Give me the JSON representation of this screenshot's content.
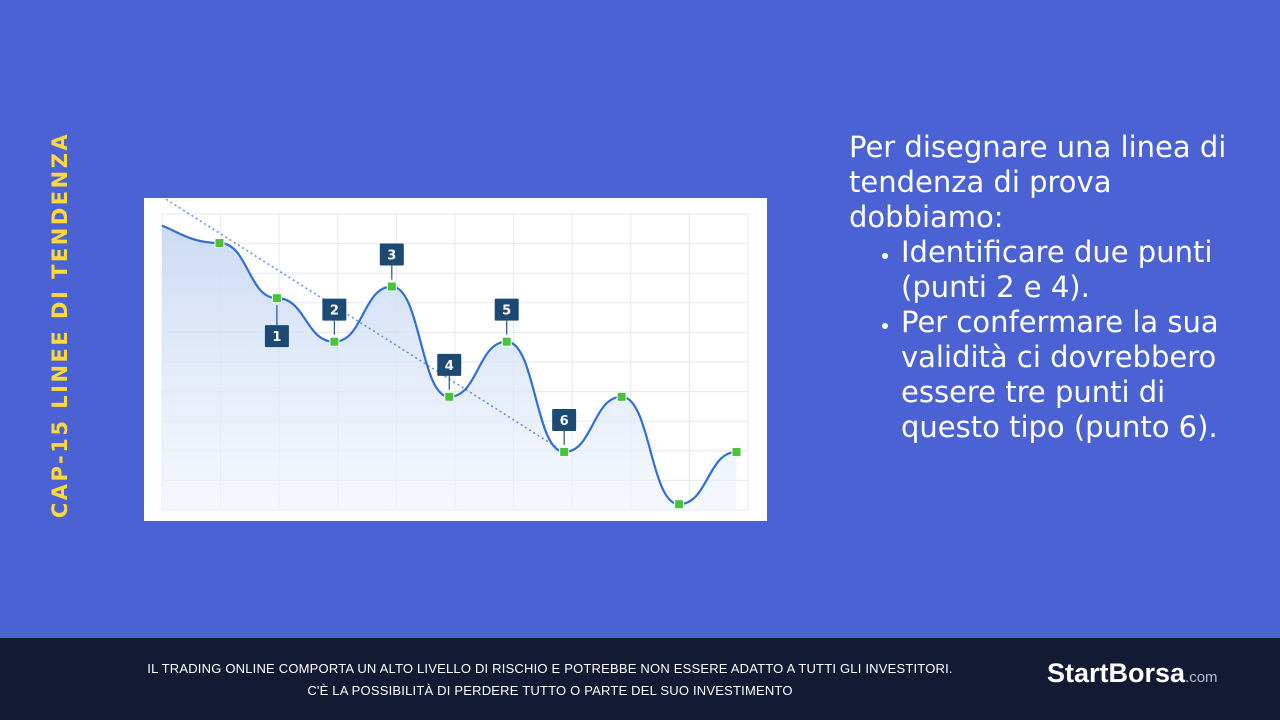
{
  "side_title": "CAP-15 LINEE DI TENDENZA",
  "content": {
    "intro": "Per disegnare una linea di tendenza di prova dobbiamo:",
    "bullets": [
      "Identificare due punti (punti 2 e 4).",
      "Per confermare la sua validità ci dovrebbero essere tre punti di questo tipo (punto 6)."
    ]
  },
  "footer": {
    "disclaimer_line1": "IL TRADING ONLINE COMPORTA UN ALTO LIVELLO DI RISCHIO E POTREBBE NON ESSERE ADATTO A TUTTI GLI INVESTITORI.",
    "disclaimer_line2": "C'È LA POSSIBILITÀ DI PERDERE TUTTO O PARTE DEL SUO INVESTIMENTO",
    "brand_name": "StartBorsa",
    "brand_suffix": ".com"
  },
  "colors": {
    "background": "#4a62d4",
    "side_title": "#ffd93b",
    "footer": "#131a33",
    "line": "#2f6fd6",
    "point": "#4cc23a",
    "label_box": "#1d4a73"
  },
  "chart_data": {
    "type": "line",
    "title": "",
    "xlabel": "",
    "ylabel": "",
    "grid": true,
    "points": [
      {
        "x": 0,
        "y": 90,
        "label": ""
      },
      {
        "x": 1,
        "y": 71,
        "label": "1"
      },
      {
        "x": 2,
        "y": 56,
        "label": "2"
      },
      {
        "x": 3,
        "y": 75,
        "label": "3"
      },
      {
        "x": 4,
        "y": 37,
        "label": "4"
      },
      {
        "x": 5,
        "y": 56,
        "label": "5"
      },
      {
        "x": 6,
        "y": 18,
        "label": "6"
      },
      {
        "x": 7,
        "y": 37,
        "label": ""
      },
      {
        "x": 8,
        "y": 0,
        "label": ""
      },
      {
        "x": 9,
        "y": 18,
        "label": ""
      }
    ],
    "start_value": 96,
    "trendline": {
      "x": [
        -1,
        6
      ],
      "y": [
        106,
        18
      ],
      "style": "dotted"
    },
    "xlim": [
      -1,
      9.2
    ],
    "ylim": [
      -2,
      100
    ]
  }
}
